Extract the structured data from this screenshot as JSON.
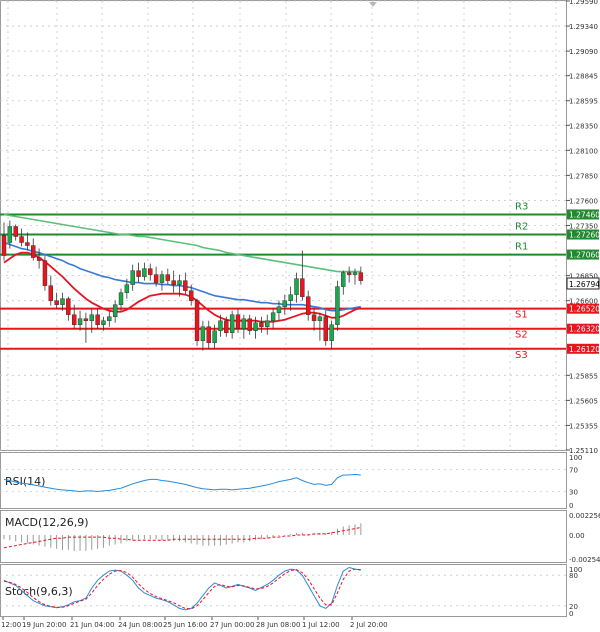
{
  "colors": {
    "bull": "#1aa84c",
    "bear": "#e8141e",
    "ma_fast": "#e8141e",
    "ma_mid": "#3a78d8",
    "ma_slow": "#5bbf7c",
    "resistance": "#1f8a2e",
    "support": "#e8141e",
    "rsi": "#2a8bd8",
    "signal": "#e8141e",
    "current_price_bg": "#ffffff",
    "grid": "#c8c8c8"
  },
  "chart_data": {
    "type": "candlestick",
    "symbol": "GBPUSD",
    "ylim": [
      1.2511,
      1.2959
    ],
    "y_ticks": [
      "1.29590",
      "1.29340",
      "1.29090",
      "1.28845",
      "1.28595",
      "1.28350",
      "1.28100",
      "1.27850",
      "1.27600",
      "1.27350",
      "1.26850",
      "1.26600",
      "1.25855",
      "1.25605",
      "1.25355",
      "1.25110"
    ],
    "x_labels": [
      "12:00",
      "19 Jun 20:00",
      "21 Jun 04:00",
      "24 Jun 08:00",
      "25 Jun 16:00",
      "27 Jun 00:00",
      "28 Jun 08:00",
      "1 Jul 12:00",
      "2 Jul 20:00"
    ],
    "current_price": "1.26794",
    "levels": [
      {
        "name": "R3",
        "value": 1.2746,
        "label": "1.27460",
        "kind": "resistance"
      },
      {
        "name": "R2",
        "value": 1.2726,
        "label": "1.27260",
        "kind": "resistance"
      },
      {
        "name": "R1",
        "value": 1.2706,
        "label": "1.27060",
        "kind": "resistance"
      },
      {
        "name": "S1",
        "value": 1.2652,
        "label": "1.26520",
        "kind": "support"
      },
      {
        "name": "S2",
        "value": 1.2632,
        "label": "1.26320",
        "kind": "support"
      },
      {
        "name": "S3",
        "value": 1.2612,
        "label": "1.26120",
        "kind": "support"
      }
    ],
    "ohlc": [
      [
        1.2725,
        1.2738,
        1.27,
        1.2705
      ],
      [
        1.2718,
        1.274,
        1.2712,
        1.2734
      ],
      [
        1.2734,
        1.2736,
        1.272,
        1.2724
      ],
      [
        1.2724,
        1.2732,
        1.2714,
        1.2718
      ],
      [
        1.2718,
        1.2728,
        1.271,
        1.2715
      ],
      [
        1.2715,
        1.2722,
        1.27,
        1.2703
      ],
      [
        1.2703,
        1.2712,
        1.2692,
        1.27
      ],
      [
        1.27,
        1.2705,
        1.267,
        1.2675
      ],
      [
        1.2675,
        1.2685,
        1.2655,
        1.266
      ],
      [
        1.266,
        1.2668,
        1.2652,
        1.2656
      ],
      [
        1.2656,
        1.2668,
        1.265,
        1.2662
      ],
      [
        1.2662,
        1.2664,
        1.264,
        1.2646
      ],
      [
        1.2646,
        1.2656,
        1.2632,
        1.2636
      ],
      [
        1.2636,
        1.265,
        1.263,
        1.2642
      ],
      [
        1.2642,
        1.2648,
        1.2618,
        1.264
      ],
      [
        1.264,
        1.2652,
        1.2628,
        1.2646
      ],
      [
        1.2646,
        1.2652,
        1.2632,
        1.2636
      ],
      [
        1.2636,
        1.2644,
        1.263,
        1.264
      ],
      [
        1.264,
        1.265,
        1.2634,
        1.2644
      ],
      [
        1.2644,
        1.266,
        1.2638,
        1.2656
      ],
      [
        1.2656,
        1.2672,
        1.265,
        1.2668
      ],
      [
        1.2668,
        1.2682,
        1.2662,
        1.2676
      ],
      [
        1.2676,
        1.2696,
        1.267,
        1.269
      ],
      [
        1.269,
        1.2698,
        1.2678,
        1.2684
      ],
      [
        1.2684,
        1.2698,
        1.268,
        1.2692
      ],
      [
        1.2692,
        1.2697,
        1.268,
        1.2686
      ],
      [
        1.2686,
        1.2694,
        1.2674,
        1.2678
      ],
      [
        1.2678,
        1.269,
        1.267,
        1.2686
      ],
      [
        1.2686,
        1.2692,
        1.2676,
        1.268
      ],
      [
        1.268,
        1.269,
        1.2668,
        1.2676
      ],
      [
        1.2676,
        1.2686,
        1.2664,
        1.268
      ],
      [
        1.268,
        1.2688,
        1.2666,
        1.267
      ],
      [
        1.267,
        1.2676,
        1.2655,
        1.266
      ],
      [
        1.266,
        1.2662,
        1.2615,
        1.262
      ],
      [
        1.262,
        1.264,
        1.261,
        1.2634
      ],
      [
        1.2634,
        1.264,
        1.2612,
        1.2618
      ],
      [
        1.2618,
        1.2636,
        1.2612,
        1.263
      ],
      [
        1.263,
        1.2646,
        1.2624,
        1.264
      ],
      [
        1.264,
        1.2644,
        1.2624,
        1.2628
      ],
      [
        1.2628,
        1.265,
        1.2622,
        1.2646
      ],
      [
        1.2646,
        1.2652,
        1.2628,
        1.2632
      ],
      [
        1.2632,
        1.2646,
        1.2622,
        1.2642
      ],
      [
        1.2642,
        1.2646,
        1.2626,
        1.263
      ],
      [
        1.263,
        1.2644,
        1.2622,
        1.2638
      ],
      [
        1.2638,
        1.2644,
        1.2628,
        1.2634
      ],
      [
        1.2634,
        1.2646,
        1.2626,
        1.264
      ],
      [
        1.264,
        1.2652,
        1.2632,
        1.2648
      ],
      [
        1.2648,
        1.266,
        1.264,
        1.2654
      ],
      [
        1.2654,
        1.2666,
        1.2646,
        1.266
      ],
      [
        1.266,
        1.2674,
        1.265,
        1.2666
      ],
      [
        1.2666,
        1.2688,
        1.2658,
        1.2682
      ],
      [
        1.2682,
        1.271,
        1.266,
        1.2664
      ],
      [
        1.2664,
        1.267,
        1.264,
        1.2646
      ],
      [
        1.2646,
        1.2652,
        1.263,
        1.264
      ],
      [
        1.264,
        1.2648,
        1.262,
        1.2644
      ],
      [
        1.2644,
        1.265,
        1.2615,
        1.262
      ],
      [
        1.262,
        1.264,
        1.2612,
        1.2636
      ],
      [
        1.2636,
        1.268,
        1.263,
        1.2674
      ],
      [
        1.2674,
        1.269,
        1.2666,
        1.2688
      ],
      [
        1.2688,
        1.2694,
        1.2678,
        1.2686
      ],
      [
        1.2686,
        1.2692,
        1.2676,
        1.2688
      ],
      [
        1.2688,
        1.2694,
        1.2676,
        1.268
      ]
    ],
    "ma_fast": [
      1.2698,
      1.2702,
      1.2706,
      1.2708,
      1.2708,
      1.2706,
      1.2703,
      1.2699,
      1.2694,
      1.2689,
      1.2684,
      1.2678,
      1.2672,
      1.2667,
      1.2662,
      1.2658,
      1.2655,
      1.2652,
      1.265,
      1.2649,
      1.2649,
      1.2651,
      1.2655,
      1.2659,
      1.2662,
      1.2665,
      1.2666,
      1.2667,
      1.2667,
      1.2667,
      1.2667,
      1.2666,
      1.2664,
      1.266,
      1.2655,
      1.265,
      1.2646,
      1.2643,
      1.2641,
      1.264,
      1.264,
      1.264,
      1.264,
      1.264,
      1.2639,
      1.2639,
      1.2639,
      1.264,
      1.2641,
      1.2643,
      1.2645,
      1.2647,
      1.2648,
      1.2648,
      1.2647,
      1.2645,
      1.2643,
      1.2643,
      1.2645,
      1.2648,
      1.2651,
      1.2653
    ],
    "ma_mid": [
      1.2718,
      1.2716,
      1.2714,
      1.2712,
      1.2711,
      1.2709,
      1.2708,
      1.2706,
      1.2704,
      1.2702,
      1.27,
      1.2697,
      1.2695,
      1.2692,
      1.269,
      1.2688,
      1.2686,
      1.2684,
      1.2683,
      1.2681,
      1.268,
      1.2679,
      1.2678,
      1.2678,
      1.2677,
      1.2677,
      1.2677,
      1.2676,
      1.2676,
      1.2675,
      1.2675,
      1.2674,
      1.2673,
      1.2671,
      1.2669,
      1.2667,
      1.2665,
      1.2664,
      1.2663,
      1.2662,
      1.2661,
      1.2661,
      1.266,
      1.2659,
      1.2658,
      1.2658,
      1.2657,
      1.2657,
      1.2656,
      1.2656,
      1.2656,
      1.2656,
      1.2655,
      1.2654,
      1.2653,
      1.2651,
      1.265,
      1.265,
      1.2651,
      1.2652,
      1.2653,
      1.2654
    ],
    "ma_slow": [
      1.2746,
      1.2745,
      1.2744,
      1.2743,
      1.2742,
      1.2741,
      1.274,
      1.2739,
      1.2738,
      1.2737,
      1.2736,
      1.2735,
      1.2734,
      1.2733,
      1.2732,
      1.2731,
      1.273,
      1.2729,
      1.2728,
      1.2727,
      1.2726,
      1.2726,
      1.2725,
      1.2724,
      1.2724,
      1.2723,
      1.2722,
      1.2721,
      1.272,
      1.2719,
      1.2718,
      1.2717,
      1.2716,
      1.2715,
      1.2713,
      1.2712,
      1.2711,
      1.271,
      1.2708,
      1.2707,
      1.2706,
      1.2705,
      1.2704,
      1.2703,
      1.2702,
      1.2701,
      1.27,
      1.2699,
      1.2698,
      1.2697,
      1.2696,
      1.2695,
      1.2694,
      1.2693,
      1.2692,
      1.2691,
      1.269,
      1.2689,
      1.2689,
      1.2689,
      1.2689,
      1.2689
    ],
    "rsi": {
      "label": "RSI(14)",
      "ylim": [
        0,
        100
      ],
      "ticks": [
        "100",
        "70",
        "30",
        "0"
      ],
      "values": [
        52,
        50,
        47,
        45,
        44,
        42,
        40,
        38,
        36,
        34,
        33,
        32,
        31,
        30,
        31,
        31,
        30,
        31,
        32,
        34,
        36,
        40,
        44,
        47,
        50,
        52,
        52,
        50,
        49,
        47,
        45,
        43,
        40,
        37,
        35,
        34,
        33,
        34,
        34,
        33,
        34,
        35,
        36,
        38,
        40,
        42,
        45,
        48,
        50,
        52,
        55,
        50,
        46,
        43,
        44,
        41,
        43,
        55,
        60,
        60,
        61,
        60
      ]
    },
    "macd": {
      "label": "MACD(12,26,9)",
      "ticks": [
        "0.002256",
        "0.00",
        "-0.002543"
      ],
      "ylim": [
        -0.002543,
        0.002256
      ],
      "hist": [
        -0.0004,
        -0.0005,
        -0.0006,
        -0.0007,
        -0.0008,
        -0.0009,
        -0.001,
        -0.0011,
        -0.0012,
        -0.0013,
        -0.0014,
        -0.0014,
        -0.0015,
        -0.0015,
        -0.0015,
        -0.0014,
        -0.0013,
        -0.0012,
        -0.001,
        -0.0009,
        -0.0008,
        -0.0006,
        -0.0005,
        -0.0004,
        -0.0004,
        -0.0004,
        -0.0004,
        -0.0005,
        -0.0005,
        -0.0006,
        -0.0006,
        -0.0007,
        -0.0008,
        -0.0009,
        -0.001,
        -0.001,
        -0.001,
        -0.001,
        -0.0009,
        -0.0008,
        -0.0007,
        -0.0007,
        -0.0006,
        -0.0005,
        -0.0004,
        -0.0003,
        -0.0002,
        -0.0001,
        0.0,
        0.0001,
        0.0002,
        0.0002,
        0.0001,
        0.0001,
        0.0002,
        0.0002,
        0.0003,
        0.0006,
        0.0008,
        0.0009,
        0.001,
        0.0011
      ],
      "signal": [
        -0.0012,
        -0.0011,
        -0.001,
        -0.0009,
        -0.0008,
        -0.0007,
        -0.0006,
        -0.0005,
        -0.0004,
        -0.0003,
        -0.0003,
        -0.0002,
        -0.0002,
        -0.0002,
        -0.0002,
        -0.0002,
        -0.0002,
        -0.0002,
        -0.0003,
        -0.0003,
        -0.0004,
        -0.0004,
        -0.0005,
        -0.0005,
        -0.0005,
        -0.0005,
        -0.0005,
        -0.0005,
        -0.0005,
        -0.0004,
        -0.0004,
        -0.0004,
        -0.0004,
        -0.0004,
        -0.0004,
        -0.0004,
        -0.0004,
        -0.0004,
        -0.0004,
        -0.0004,
        -0.0004,
        -0.0004,
        -0.0004,
        -0.0003,
        -0.0003,
        -0.0003,
        -0.0002,
        -0.0002,
        -0.0001,
        -0.0001,
        0.0,
        0.0,
        0.0,
        0.0001,
        0.0001,
        0.0001,
        0.0002,
        0.0003,
        0.0004,
        0.0005,
        0.0006,
        0.0007
      ]
    },
    "stoch": {
      "label": "Stoch(9,6,3)",
      "ticks": [
        "100",
        "80",
        "20",
        "0"
      ],
      "ylim": [
        0,
        100
      ],
      "k": [
        70,
        65,
        60,
        50,
        40,
        30,
        25,
        20,
        18,
        16,
        18,
        22,
        28,
        30,
        35,
        55,
        70,
        80,
        88,
        90,
        88,
        80,
        70,
        55,
        45,
        40,
        35,
        32,
        28,
        22,
        15,
        12,
        15,
        25,
        40,
        55,
        65,
        60,
        55,
        58,
        62,
        58,
        55,
        50,
        56,
        62,
        70,
        80,
        88,
        92,
        90,
        80,
        60,
        40,
        20,
        15,
        25,
        60,
        88,
        95,
        92,
        90
      ],
      "d": [
        68,
        66,
        62,
        55,
        46,
        36,
        28,
        22,
        19,
        17,
        17,
        20,
        25,
        29,
        33,
        45,
        60,
        72,
        82,
        88,
        89,
        85,
        76,
        63,
        52,
        44,
        38,
        34,
        30,
        26,
        20,
        15,
        14,
        20,
        32,
        46,
        58,
        62,
        58,
        57,
        60,
        59,
        56,
        53,
        54,
        58,
        65,
        74,
        83,
        89,
        91,
        85,
        72,
        54,
        35,
        22,
        22,
        45,
        72,
        88,
        92,
        91
      ]
    }
  }
}
